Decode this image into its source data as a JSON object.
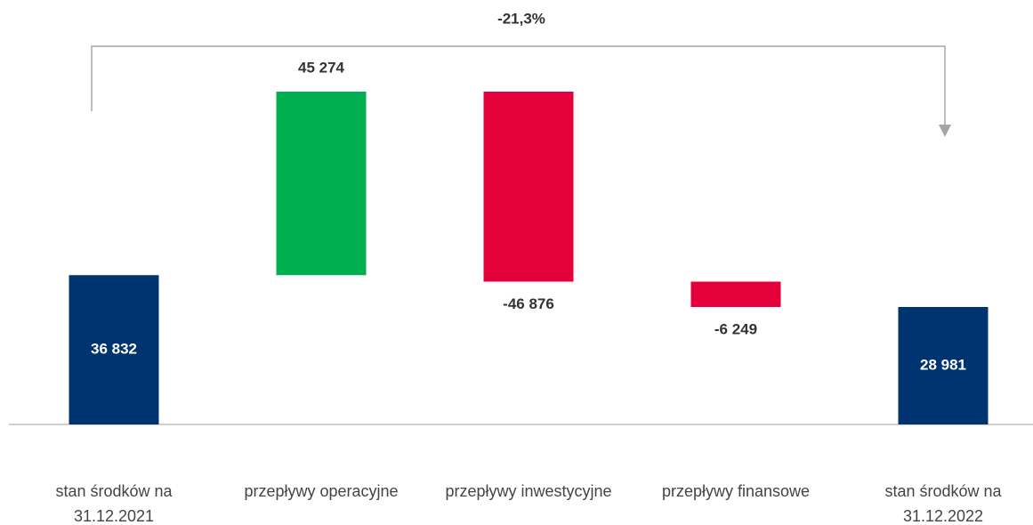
{
  "chart_data": {
    "type": "waterfall",
    "annotation": "-21,3%",
    "categories": [
      "stan środków na\n31.12.2021",
      "przepływy operacyjne",
      "przepływy inwestycyjne",
      "przepływy finansowe",
      "stan środków na\n31.12.2022"
    ],
    "values": [
      36832,
      45274,
      -46876,
      -6249,
      28981
    ],
    "value_labels": [
      "36 832",
      "45 274",
      "-46 876",
      "-6 249",
      "28 981"
    ],
    "measure": [
      "total",
      "relative",
      "relative",
      "relative",
      "total"
    ],
    "colors": [
      "#003470",
      "#00b050",
      "#e4003a",
      "#e4003a",
      "#003470"
    ]
  }
}
